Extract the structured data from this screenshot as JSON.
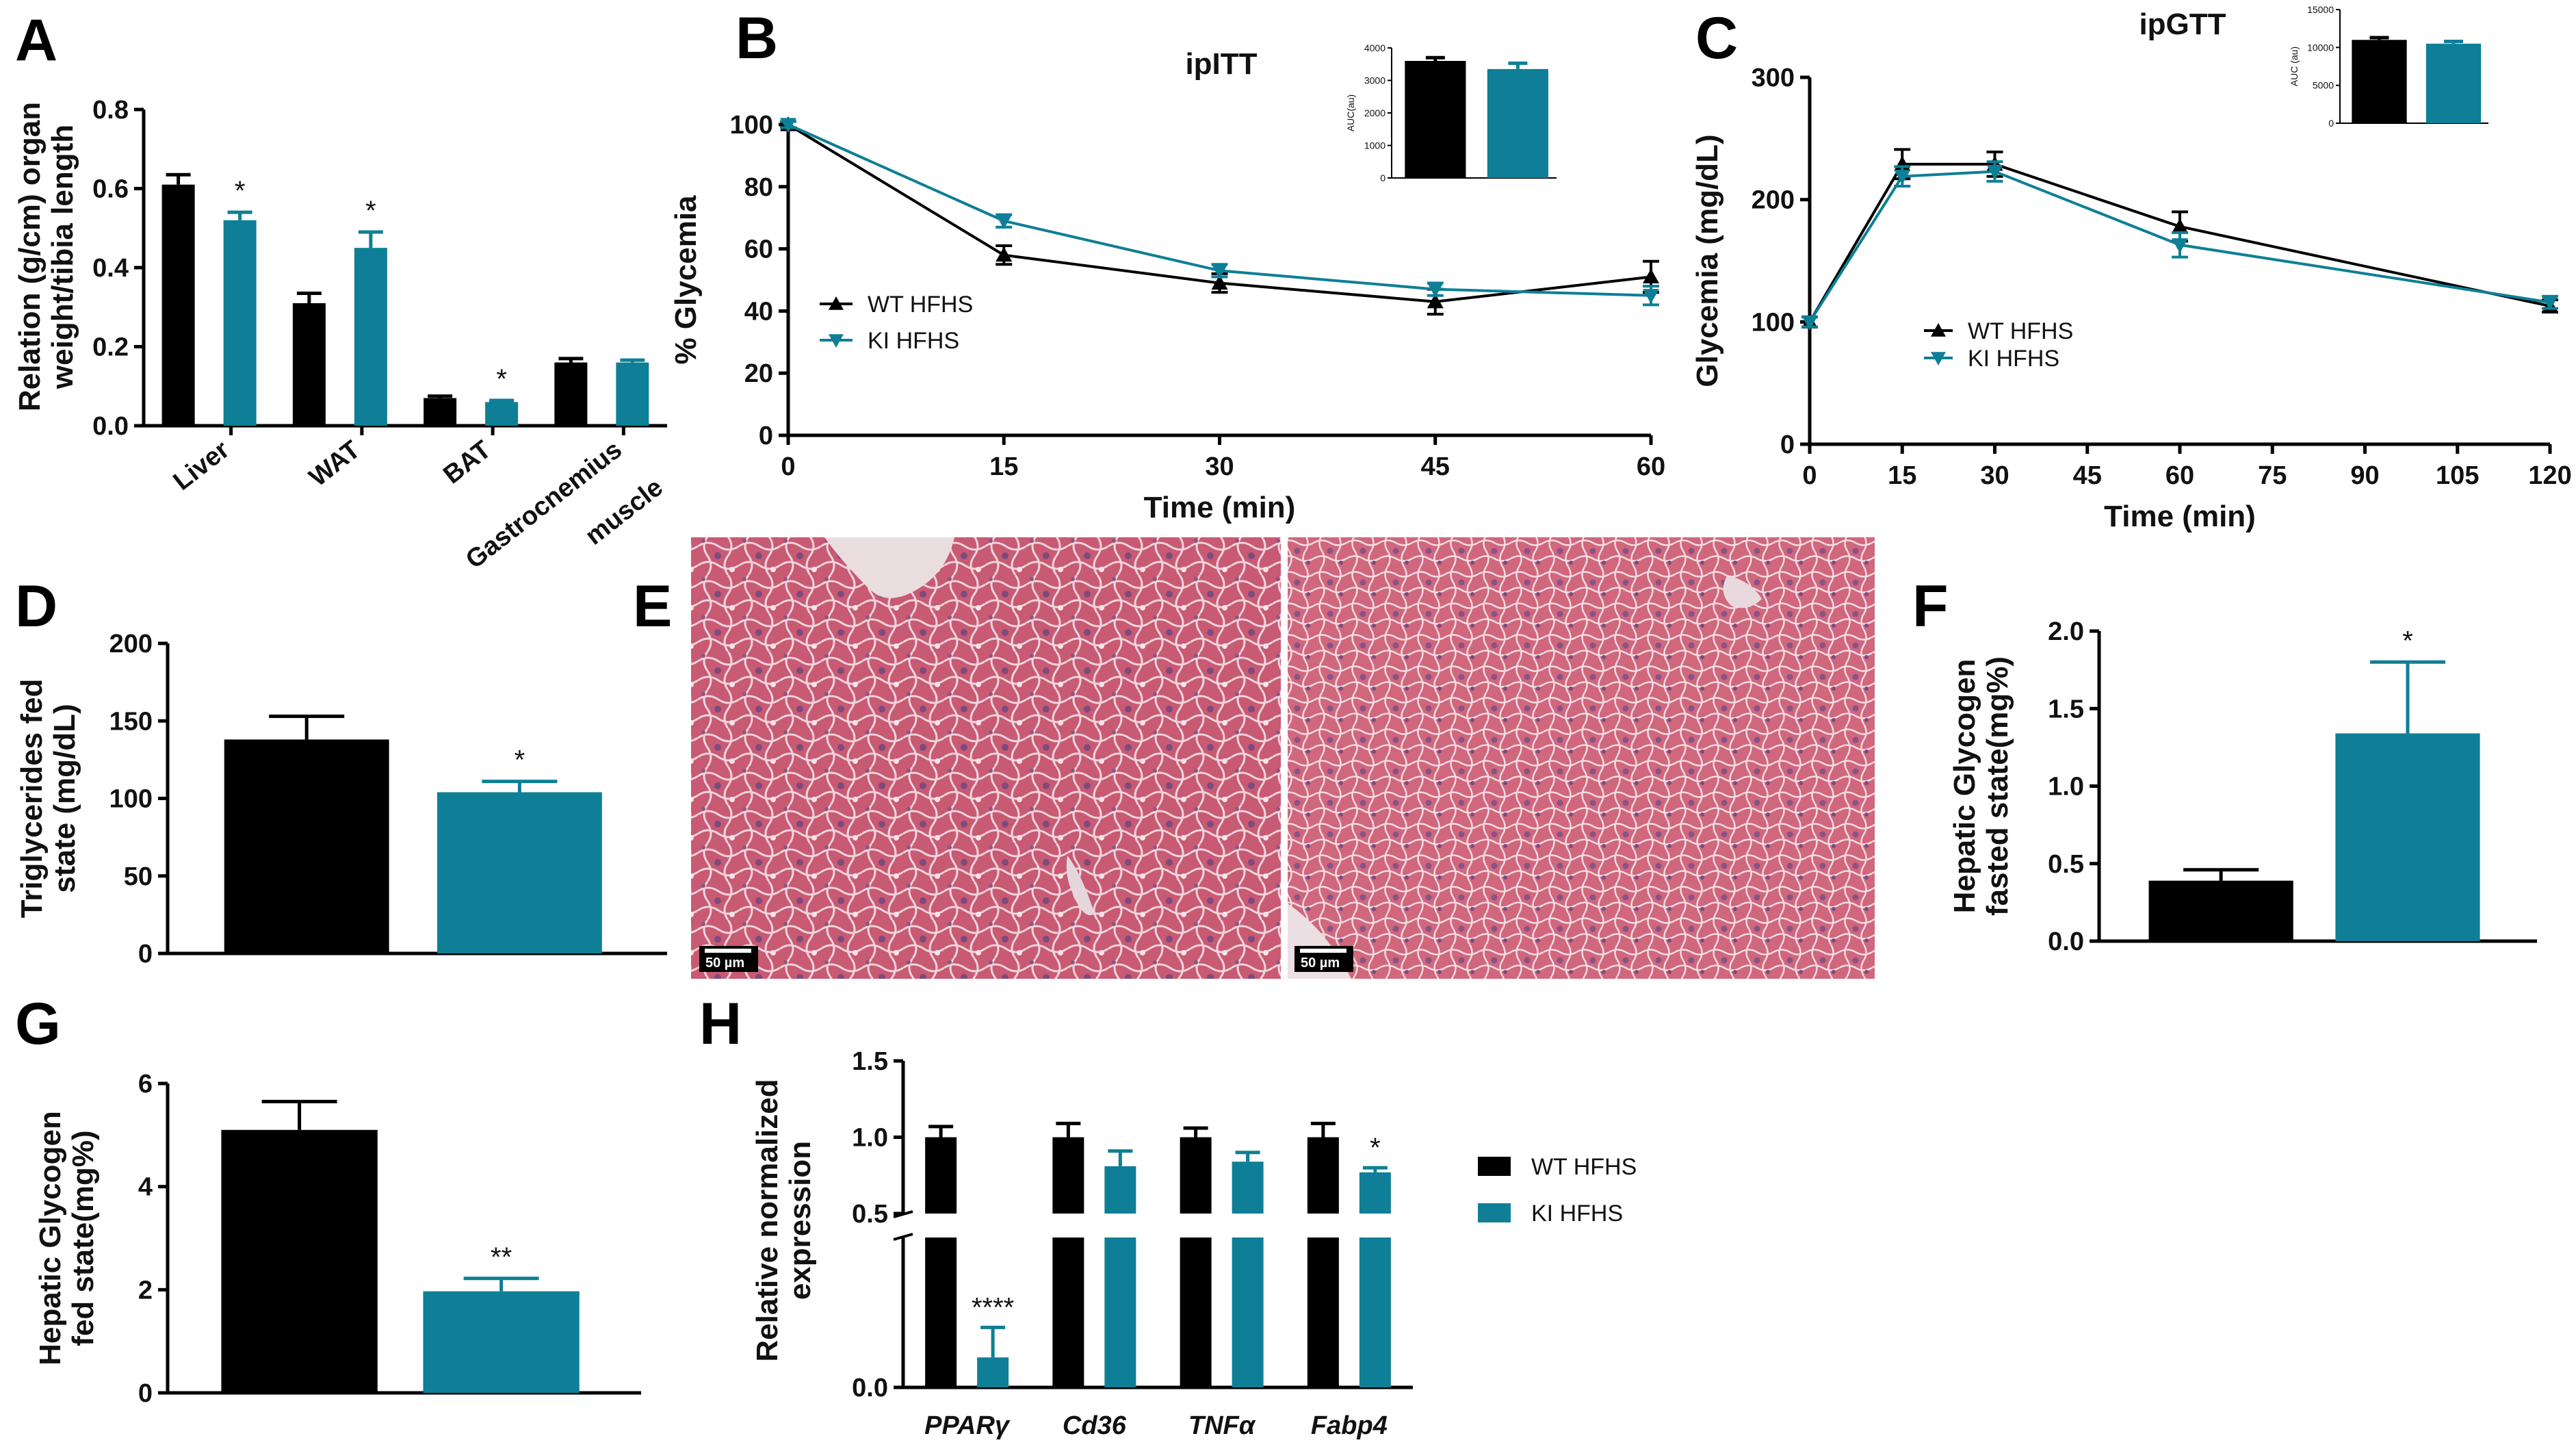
{
  "colors": {
    "wt": "#000000",
    "ki": "#0e7f96"
  },
  "chart_data": [
    {
      "id": "A",
      "panel": "A",
      "type": "bar",
      "ylabel": [
        "Relation (g/cm) organ",
        "weight/tibia length"
      ],
      "ylim": [
        0,
        0.8
      ],
      "yticks": [
        "0.0",
        "0.2",
        "0.4",
        "0.6",
        "0.8"
      ],
      "categories": [
        "Liver",
        "WAT",
        "BAT",
        "Gastrocnemius\nmuscle"
      ],
      "series": [
        {
          "name": "WT HFHS",
          "values": [
            0.61,
            0.31,
            0.07,
            0.16
          ],
          "errors": [
            0.025,
            0.025,
            0.005,
            0.01
          ]
        },
        {
          "name": "KI HFHS",
          "values": [
            0.52,
            0.45,
            0.06,
            0.16
          ],
          "errors": [
            0.02,
            0.04,
            0.004,
            0.006
          ]
        }
      ],
      "annotations": [
        {
          "category": 0,
          "series": 1,
          "text": "*"
        },
        {
          "category": 1,
          "series": 1,
          "text": "*"
        },
        {
          "category": 2,
          "series": 1,
          "text": "*"
        }
      ]
    },
    {
      "id": "B",
      "panel": "B",
      "type": "line",
      "title": "ipITT",
      "xlabel": "Time (min)",
      "ylabel": "% Glycemia",
      "x": [
        0,
        15,
        30,
        45,
        60
      ],
      "xlim": [
        0,
        60
      ],
      "ylim": [
        0,
        100
      ],
      "xticks": [
        "0",
        "15",
        "30",
        "45",
        "60"
      ],
      "yticks": [
        "0",
        "20",
        "40",
        "60",
        "80",
        "100"
      ],
      "series": [
        {
          "name": "WT HFHS",
          "values": [
            100,
            58,
            49,
            43,
            51
          ],
          "errors": [
            1,
            3,
            3,
            4,
            5
          ]
        },
        {
          "name": "KI HFHS",
          "values": [
            100,
            69,
            53,
            47,
            45
          ],
          "errors": [
            1,
            2,
            2,
            2,
            3
          ]
        }
      ],
      "inset": {
        "ylabel": "AUC(au)",
        "ylim": [
          0,
          4000
        ],
        "yticks": [
          "0",
          "1000",
          "2000",
          "3000",
          "4000"
        ],
        "values": [
          3600,
          3350
        ],
        "errors": [
          100,
          180
        ]
      }
    },
    {
      "id": "C",
      "panel": "C",
      "type": "line",
      "title": "ipGTT",
      "xlabel": "Time (min)",
      "ylabel": "Glycemia (mg/dL)",
      "x": [
        0,
        15,
        30,
        60,
        120
      ],
      "xlim": [
        0,
        120
      ],
      "ylim": [
        0,
        300
      ],
      "xticks": [
        "0",
        "15",
        "30",
        "45",
        "60",
        "75",
        "90",
        "105",
        "120"
      ],
      "yticks": [
        "0",
        "100",
        "200",
        "300"
      ],
      "series": [
        {
          "name": "WT HFHS",
          "values": [
            100,
            229,
            229,
            178,
            113
          ],
          "errors": [
            4,
            12,
            10,
            12,
            5
          ]
        },
        {
          "name": "KI HFHS",
          "values": [
            100,
            219,
            223,
            163,
            116
          ],
          "errors": [
            4,
            8,
            8,
            10,
            5
          ]
        }
      ],
      "inset": {
        "ylabel": "AUC (au)",
        "ylim": [
          0,
          15000
        ],
        "yticks": [
          "0",
          "5000",
          "10000",
          "15000"
        ],
        "values": [
          11000,
          10500
        ],
        "errors": [
          300,
          300
        ]
      }
    },
    {
      "id": "D",
      "panel": "D",
      "type": "bar",
      "ylabel": [
        "Triglycerides fed",
        "state (mg/dL)"
      ],
      "ylim": [
        0,
        200
      ],
      "yticks": [
        "0",
        "50",
        "100",
        "150",
        "200"
      ],
      "series": [
        {
          "name": "WT HFHS",
          "values": [
            138
          ],
          "errors": [
            15
          ]
        },
        {
          "name": "KI HFHS",
          "values": [
            104
          ],
          "errors": [
            7
          ]
        }
      ],
      "annotations": [
        {
          "series": 1,
          "text": "*"
        }
      ]
    },
    {
      "id": "F",
      "panel": "F",
      "type": "bar",
      "ylabel": [
        "Hepatic Glycogen",
        "fasted state(mg%)"
      ],
      "ylim": [
        0,
        2.0
      ],
      "yticks": [
        "0.0",
        "0.5",
        "1.0",
        "1.5",
        "2.0"
      ],
      "series": [
        {
          "name": "WT HFHS",
          "values": [
            0.39
          ],
          "errors": [
            0.07
          ]
        },
        {
          "name": "KI HFHS",
          "values": [
            1.34
          ],
          "errors": [
            0.46
          ]
        }
      ],
      "annotations": [
        {
          "series": 1,
          "text": "*"
        }
      ]
    },
    {
      "id": "G",
      "panel": "G",
      "type": "bar",
      "ylabel": [
        "Hepatic Glycogen",
        "fed state(mg%)"
      ],
      "ylim": [
        0,
        6
      ],
      "yticks": [
        "0",
        "2",
        "4",
        "6"
      ],
      "series": [
        {
          "name": "WT HFHS",
          "values": [
            5.1
          ],
          "errors": [
            0.55
          ]
        },
        {
          "name": "KI HFHS",
          "values": [
            1.97
          ],
          "errors": [
            0.25
          ]
        }
      ],
      "annotations": [
        {
          "series": 1,
          "text": "**"
        }
      ]
    },
    {
      "id": "H",
      "panel": "H",
      "type": "bar",
      "ylabel": [
        "Relative normalized",
        "expression"
      ],
      "yticks": [
        "0.0",
        "0.5",
        "1.0",
        "1.5"
      ],
      "axis_break": [
        0.1,
        0.5
      ],
      "categories": [
        "PPARγ",
        "Cd36",
        "TNFα",
        "Fabp4"
      ],
      "series": [
        {
          "name": "WT HFHS",
          "values": [
            1.0,
            1.0,
            1.0,
            1.0
          ],
          "errors": [
            0.07,
            0.09,
            0.06,
            0.09
          ]
        },
        {
          "name": "KI HFHS",
          "values": [
            0.02,
            0.81,
            0.84,
            0.77
          ],
          "errors": [
            0.02,
            0.1,
            0.06,
            0.03
          ]
        }
      ],
      "annotations": [
        {
          "category": 0,
          "series": 1,
          "text": "****"
        },
        {
          "category": 3,
          "series": 1,
          "text": "*"
        }
      ],
      "legend": [
        "WT HFHS",
        "KI HFHS"
      ]
    }
  ],
  "micrographs": {
    "panel": "E",
    "scale_bars": [
      "50 µm",
      "50 µm"
    ]
  }
}
